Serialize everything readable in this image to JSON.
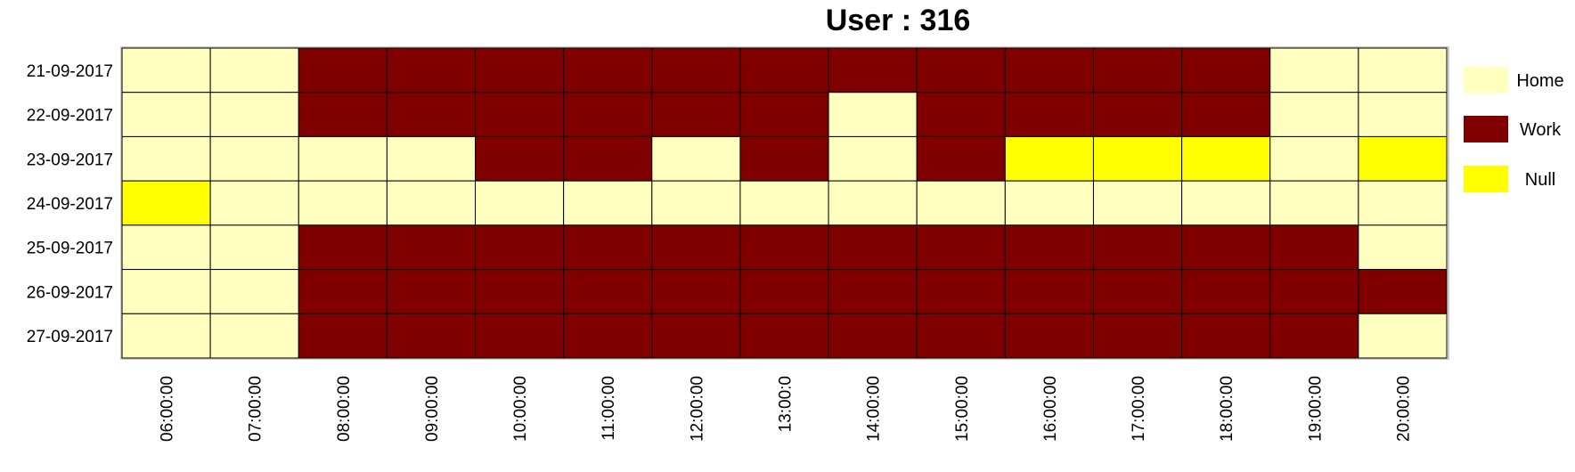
{
  "chart_data": {
    "type": "heatmap",
    "title": "User : 316",
    "rows": [
      "21-09-2017",
      "22-09-2017",
      "23-09-2017",
      "24-09-2017",
      "25-09-2017",
      "26-09-2017",
      "27-09-2017"
    ],
    "columns": [
      "06:00:00",
      "07:00:00",
      "08:00:00",
      "09:00:00",
      "10:00:00",
      "11:00:00",
      "12:00:00",
      "13:00:0",
      "14:00:00",
      "15:00:00",
      "16:00:00",
      "17:00:00",
      "18:00:00",
      "19:00:00",
      "20:00:00"
    ],
    "values": [
      [
        "Home",
        "Home",
        "Work",
        "Work",
        "Work",
        "Work",
        "Work",
        "Work",
        "Work",
        "Work",
        "Work",
        "Work",
        "Work",
        "Home",
        "Home"
      ],
      [
        "Home",
        "Home",
        "Work",
        "Work",
        "Work",
        "Work",
        "Work",
        "Work",
        "Home",
        "Work",
        "Work",
        "Work",
        "Work",
        "Home",
        "Home"
      ],
      [
        "Home",
        "Home",
        "Home",
        "Home",
        "Work",
        "Work",
        "Home",
        "Work",
        "Home",
        "Work",
        "Null",
        "Null",
        "Null",
        "Home",
        "Null"
      ],
      [
        "Null",
        "Home",
        "Home",
        "Home",
        "Home",
        "Home",
        "Home",
        "Home",
        "Home",
        "Home",
        "Home",
        "Home",
        "Home",
        "Home",
        "Home"
      ],
      [
        "Home",
        "Home",
        "Work",
        "Work",
        "Work",
        "Work",
        "Work",
        "Work",
        "Work",
        "Work",
        "Work",
        "Work",
        "Work",
        "Work",
        "Home"
      ],
      [
        "Home",
        "Home",
        "Work",
        "Work",
        "Work",
        "Work",
        "Work",
        "Work",
        "Work",
        "Work",
        "Work",
        "Work",
        "Work",
        "Work",
        "Work"
      ],
      [
        "Home",
        "Home",
        "Work",
        "Work",
        "Work",
        "Work",
        "Work",
        "Work",
        "Work",
        "Work",
        "Work",
        "Work",
        "Work",
        "Work",
        "Home"
      ]
    ],
    "legend": [
      {
        "label": "Home",
        "color": "#FFFFC0"
      },
      {
        "label": "Work",
        "color": "#800000"
      },
      {
        "label": "Null",
        "color": "#FFFF00"
      }
    ],
    "legend_position": "right",
    "grid": true
  }
}
